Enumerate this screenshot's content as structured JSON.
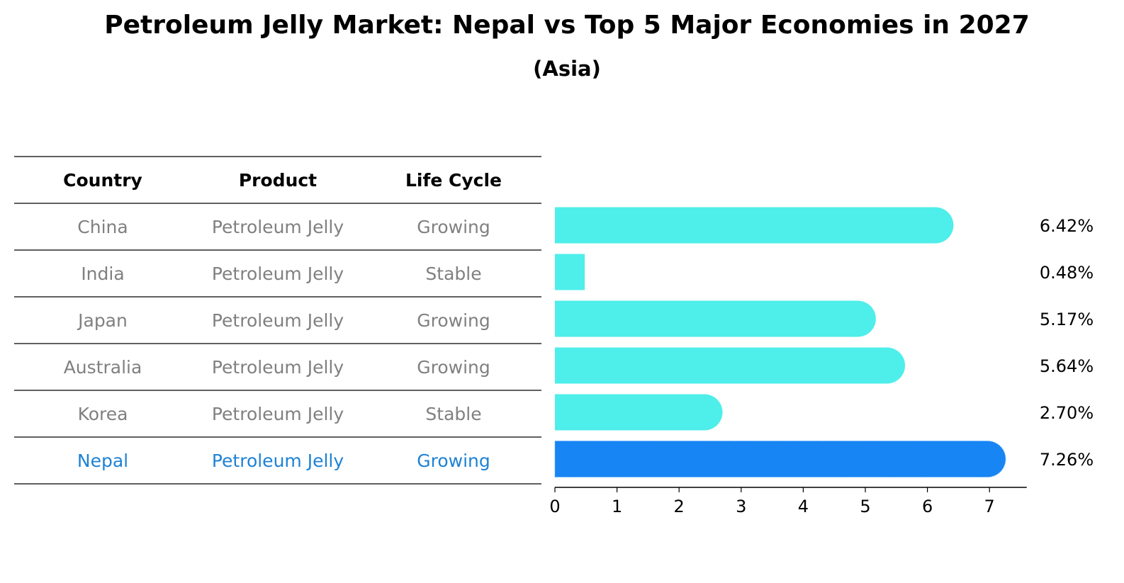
{
  "chart_data": {
    "type": "bar",
    "orientation": "horizontal",
    "title": "Petroleum Jelly Market: Nepal vs Top 5 Major Economies in 2027",
    "subtitle": "(Asia)",
    "table_headers": [
      "Country",
      "Product",
      "Life Cycle"
    ],
    "rows": [
      {
        "country": "China",
        "product": "Petroleum Jelly",
        "life_cycle": "Growing",
        "value": 6.42,
        "label": "6.42%",
        "highlight": false
      },
      {
        "country": "India",
        "product": "Petroleum Jelly",
        "life_cycle": "Stable",
        "value": 0.48,
        "label": "0.48%",
        "highlight": false
      },
      {
        "country": "Japan",
        "product": "Petroleum Jelly",
        "life_cycle": "Growing",
        "value": 5.17,
        "label": "5.17%",
        "highlight": false
      },
      {
        "country": "Australia",
        "product": "Petroleum Jelly",
        "life_cycle": "Growing",
        "value": 5.64,
        "label": "5.64%",
        "highlight": false
      },
      {
        "country": "Korea",
        "product": "Petroleum Jelly",
        "life_cycle": "Stable",
        "value": 2.7,
        "label": "2.70%",
        "highlight": false
      },
      {
        "country": "Nepal",
        "product": "Petroleum Jelly",
        "life_cycle": "Growing",
        "value": 7.26,
        "label": "7.26%",
        "highlight": true
      }
    ],
    "xticks": [
      0,
      1,
      2,
      3,
      4,
      5,
      6,
      7
    ],
    "xlim": [
      0,
      7.6
    ],
    "colors": {
      "bar": "#4eeeea",
      "highlight_bar": "#1785f3",
      "row_text": "#808080",
      "highlight_text": "#1e82d4",
      "rule": "#000000"
    }
  }
}
